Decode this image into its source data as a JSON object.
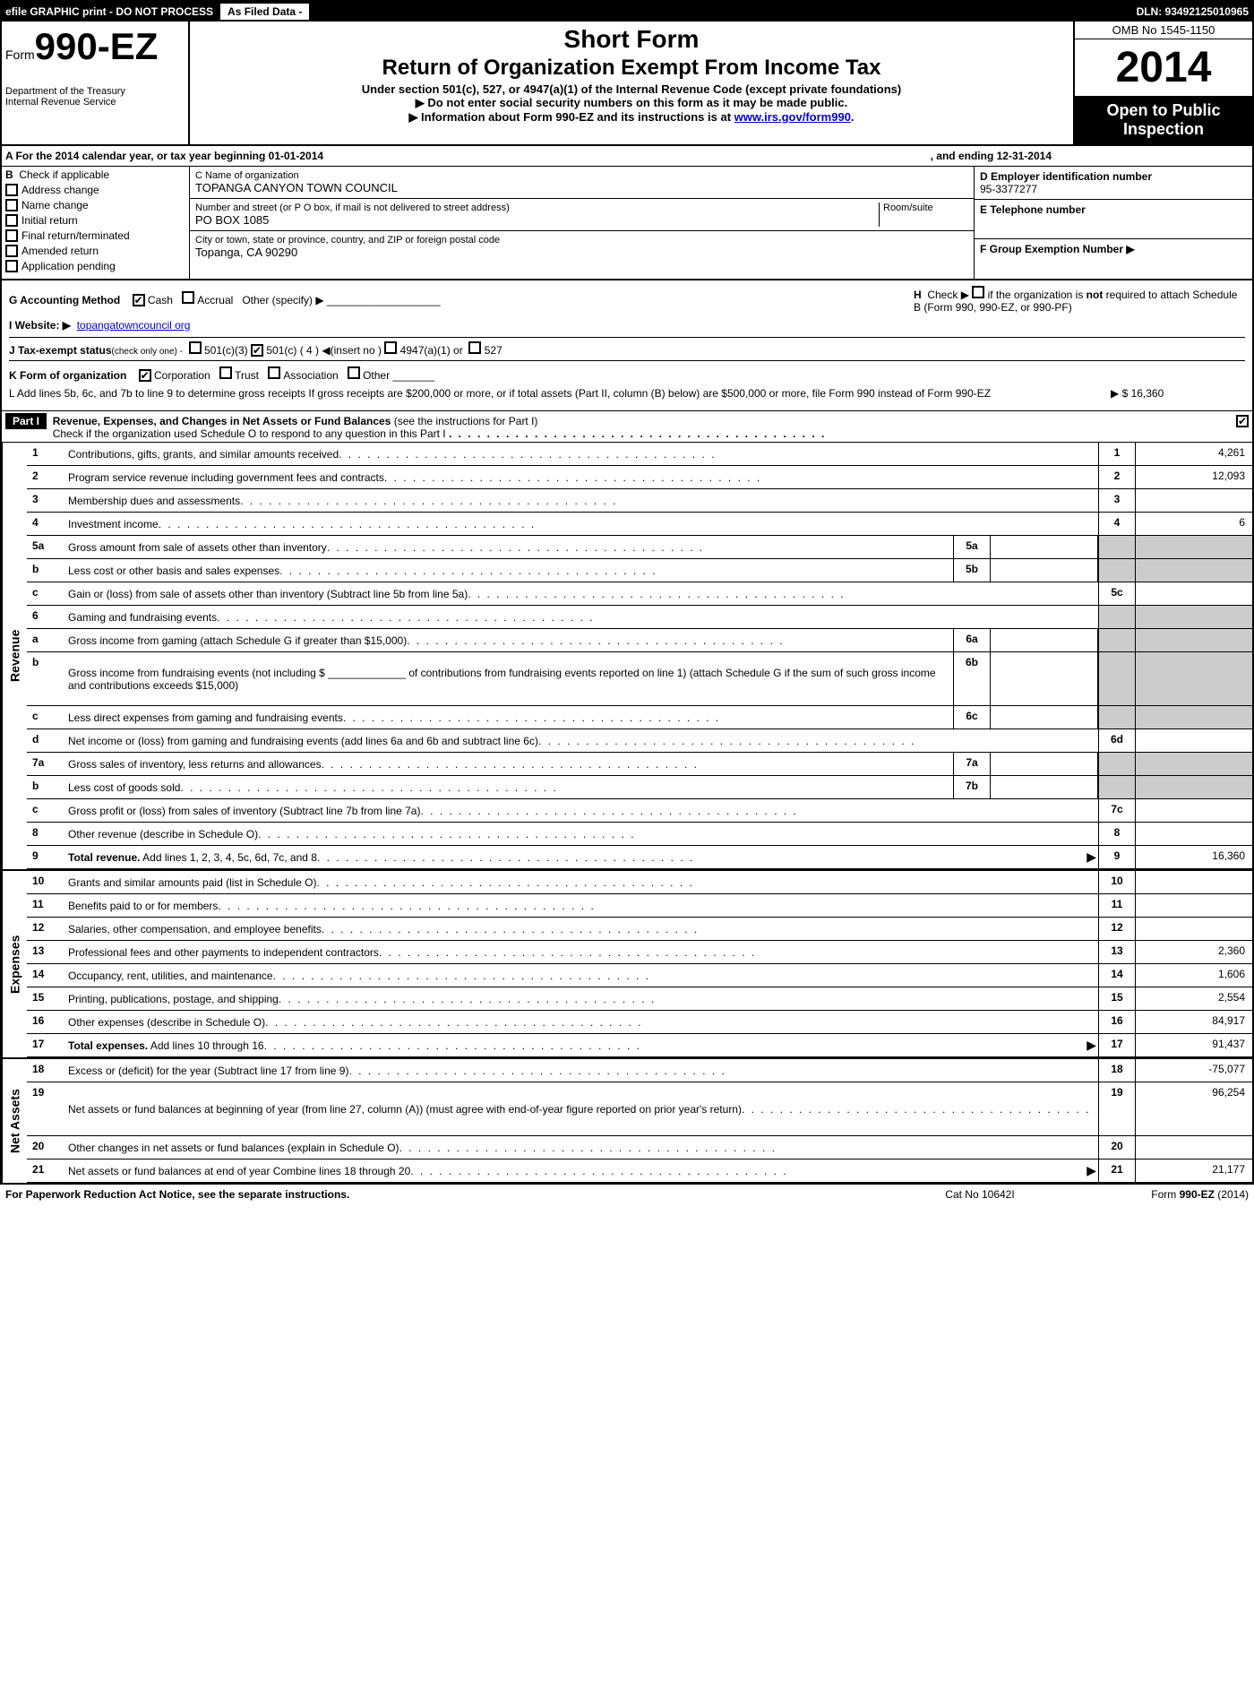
{
  "topbar": {
    "efile": "efile GRAPHIC print - DO NOT PROCESS",
    "asfiled": "As Filed Data -",
    "dln": "DLN: 93492125010965"
  },
  "header": {
    "form_prefix": "Form",
    "form_number": "990-EZ",
    "dept1": "Department of the Treasury",
    "dept2": "Internal Revenue Service",
    "title1": "Short Form",
    "title2": "Return of Organization Exempt From Income Tax",
    "subtitle1": "Under section 501(c), 527, or 4947(a)(1) of the Internal Revenue Code (except private foundations)",
    "subtitle2": "▶ Do not enter social security numbers on this form as it may be made public.",
    "subtitle3": "▶ Information about Form 990-EZ and its instructions is at ",
    "irs_link": "www.irs.gov/form990",
    "omb": "OMB No 1545-1150",
    "year": "2014",
    "open1": "Open to Public",
    "open2": "Inspection"
  },
  "rowA": {
    "text_a": "A  For the 2014 calendar year, or tax year beginning 01-01-2014",
    "text_b": ", and ending 12-31-2014"
  },
  "sectionB": {
    "label": "B",
    "check_label": "Check if applicable",
    "items": [
      "Address change",
      "Name change",
      "Initial return",
      "Final return/terminated",
      "Amended return",
      "Application pending"
    ]
  },
  "sectionC": {
    "c_label": "C Name of organization",
    "c_value": "TOPANGA CANYON TOWN COUNCIL",
    "street_label": "Number and street (or P  O  box, if mail is not delivered to street address)",
    "room_label": "Room/suite",
    "street_value": "PO BOX 1085",
    "city_label": "City or town, state or province, country, and ZIP or foreign postal code",
    "city_value": "Topanga, CA  90290"
  },
  "sectionD": {
    "d_label": "D Employer identification number",
    "d_value": "95-3377277",
    "e_label": "E Telephone number",
    "f_label": "F Group Exemption Number   ▶"
  },
  "mid": {
    "g_label": "G Accounting Method",
    "g_cash": "Cash",
    "g_accrual": "Accrual",
    "g_other": "Other (specify) ▶",
    "h_text": "H  Check ▶        if the organization is not required to attach Schedule B (Form 990, 990-EZ, or 990-PF)",
    "i_label": "I Website: ▶",
    "i_value": "topangatowncouncil org",
    "j_label": "J Tax-exempt status",
    "j_sub": "(check only one) -",
    "j_501c3": "501(c)(3)",
    "j_501c": "501(c) ( 4 ) ◀(insert no )",
    "j_4947": "4947(a)(1) or",
    "j_527": "527",
    "k_label": "K Form of organization",
    "k_corp": "Corporation",
    "k_trust": "Trust",
    "k_assoc": "Association",
    "k_other": "Other",
    "l_text": "L Add lines 5b, 6c, and 7b to line 9 to determine gross receipts  If gross receipts are $200,000 or more, or if total assets (Part II, column (B) below) are $500,000 or more, file Form 990 instead of Form 990-EZ",
    "l_amount": "▶ $ 16,360"
  },
  "part1": {
    "label": "Part I",
    "title": "Revenue, Expenses, and Changes in Net Assets or Fund Balances",
    "subtitle": "(see the instructions for Part I)",
    "check_text": "Check if the organization used Schedule O to respond to any question in this Part I"
  },
  "sections": {
    "revenue": "Revenue",
    "expenses": "Expenses",
    "netassets": "Net Assets"
  },
  "lines": [
    {
      "n": "1",
      "text": "Contributions, gifts, grants, and similar amounts received",
      "end_n": "1",
      "end_v": "4,261"
    },
    {
      "n": "2",
      "text": "Program service revenue including government fees and contracts",
      "end_n": "2",
      "end_v": "12,093"
    },
    {
      "n": "3",
      "text": "Membership dues and assessments",
      "end_n": "3",
      "end_v": ""
    },
    {
      "n": "4",
      "text": "Investment income",
      "end_n": "4",
      "end_v": "6"
    },
    {
      "n": "5a",
      "text": "Gross amount from sale of assets other than inventory",
      "sub_n": "5a",
      "sub_v": "",
      "grey_end": true
    },
    {
      "n": "b",
      "text": "Less  cost or other basis and sales expenses",
      "sub_n": "5b",
      "sub_v": "",
      "grey_end": true
    },
    {
      "n": "c",
      "text": "Gain or (loss) from sale of assets other than inventory (Subtract line 5b from line 5a)",
      "end_n": "5c",
      "end_v": ""
    },
    {
      "n": "6",
      "text": "Gaming and fundraising events",
      "grey_end": true,
      "no_end_num": true
    },
    {
      "n": "a",
      "text": "Gross income from gaming (attach Schedule G if greater than $15,000)",
      "sub_n": "6a",
      "sub_v": "",
      "grey_end": true
    },
    {
      "n": "b",
      "text": "Gross income from fundraising events (not including $ _____________ of contributions from fundraising events reported on line 1) (attach Schedule G if the sum of such gross income and contributions exceeds $15,000)",
      "sub_n": "6b",
      "sub_v": "",
      "grey_end": true,
      "tall": true
    },
    {
      "n": "c",
      "text": "Less  direct expenses from gaming and fundraising events",
      "sub_n": "6c",
      "sub_v": "",
      "grey_end": true
    },
    {
      "n": "d",
      "text": "Net income or (loss) from gaming and fundraising events (add lines 6a and 6b and subtract line 6c)",
      "end_n": "6d",
      "end_v": ""
    },
    {
      "n": "7a",
      "text": "Gross sales of inventory, less returns and allowances",
      "sub_n": "7a",
      "sub_v": "",
      "grey_end": true
    },
    {
      "n": "b",
      "text": "Less  cost of goods sold",
      "sub_n": "7b",
      "sub_v": "",
      "grey_end": true
    },
    {
      "n": "c",
      "text": "Gross profit or (loss) from sales of inventory (Subtract line 7b from line 7a)",
      "end_n": "7c",
      "end_v": ""
    },
    {
      "n": "8",
      "text": "Other revenue (describe in Schedule O)",
      "end_n": "8",
      "end_v": ""
    },
    {
      "n": "9",
      "text": "Total revenue. Add lines 1, 2, 3, 4, 5c, 6d, 7c, and 8",
      "end_n": "9",
      "end_v": "16,360",
      "bold": true,
      "arrow": true
    }
  ],
  "expense_lines": [
    {
      "n": "10",
      "text": "Grants and similar amounts paid (list in Schedule O)",
      "end_n": "10",
      "end_v": ""
    },
    {
      "n": "11",
      "text": "Benefits paid to or for members",
      "end_n": "11",
      "end_v": ""
    },
    {
      "n": "12",
      "text": "Salaries, other compensation, and employee benefits",
      "end_n": "12",
      "end_v": ""
    },
    {
      "n": "13",
      "text": "Professional fees and other payments to independent contractors",
      "end_n": "13",
      "end_v": "2,360"
    },
    {
      "n": "14",
      "text": "Occupancy, rent, utilities, and maintenance",
      "end_n": "14",
      "end_v": "1,606"
    },
    {
      "n": "15",
      "text": "Printing, publications, postage, and shipping",
      "end_n": "15",
      "end_v": "2,554"
    },
    {
      "n": "16",
      "text": "Other expenses (describe in Schedule O)",
      "end_n": "16",
      "end_v": "84,917"
    },
    {
      "n": "17",
      "text": "Total expenses. Add lines 10 through 16",
      "end_n": "17",
      "end_v": "91,437",
      "bold": true,
      "arrow": true
    }
  ],
  "netasset_lines": [
    {
      "n": "18",
      "text": "Excess or (deficit) for the year (Subtract line 17 from line 9)",
      "end_n": "18",
      "end_v": "-75,077"
    },
    {
      "n": "19",
      "text": "Net assets or fund balances at beginning of year (from line 27, column (A)) (must agree with end-of-year figure reported on prior year's return)",
      "end_n": "19",
      "end_v": "96,254",
      "tall": true
    },
    {
      "n": "20",
      "text": "Other changes in net assets or fund balances (explain in Schedule O)",
      "end_n": "20",
      "end_v": ""
    },
    {
      "n": "21",
      "text": "Net assets or fund balances at end of year  Combine lines 18 through 20",
      "end_n": "21",
      "end_v": "21,177",
      "arrow": true
    }
  ],
  "footer": {
    "left": "For Paperwork Reduction Act Notice, see the separate instructions.",
    "center": "Cat No  10642I",
    "right": "Form 990-EZ (2014)"
  }
}
